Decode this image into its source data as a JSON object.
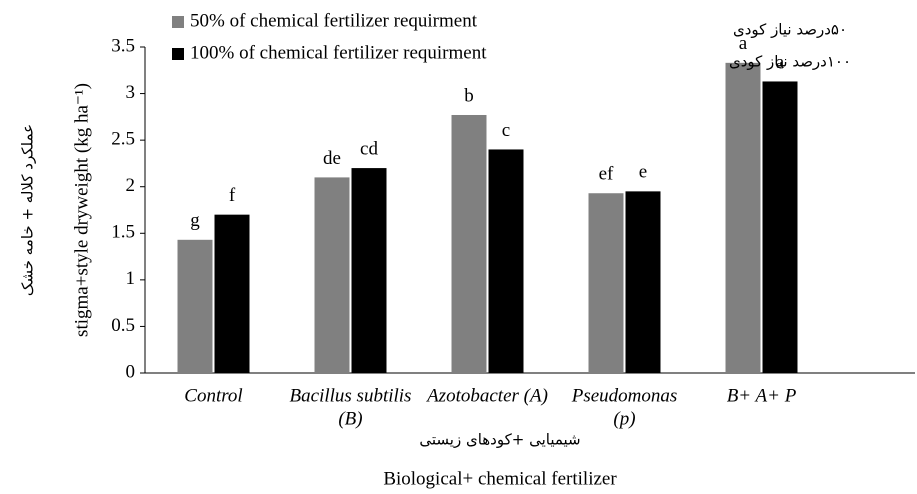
{
  "chart_data": {
    "type": "bar",
    "categories": [
      [
        "Control"
      ],
      [
        "Bacillus subtilis",
        "(B)"
      ],
      [
        "Azotobacter (A)"
      ],
      [
        "Pseudomonas",
        "(p)"
      ],
      [
        "B+ A+ P"
      ]
    ],
    "series": [
      {
        "name": "50% of chemical fertilizer requirment",
        "name_fa": "۵۰درصد نیاز کودی",
        "color": "#808080",
        "values": [
          1.43,
          2.1,
          2.77,
          1.93,
          3.33
        ],
        "letters": [
          "g",
          "de",
          "b",
          "ef",
          "a"
        ]
      },
      {
        "name": "100% of chemical fertilizer requirment",
        "name_fa": "۱۰۰درصد نیاز کودی",
        "color": "#000000",
        "values": [
          1.7,
          2.2,
          2.4,
          1.95,
          3.13
        ],
        "letters": [
          "f",
          "cd",
          "c",
          "e",
          "a"
        ]
      }
    ],
    "ylabel": "stigma+style dryweight (kg ha⁻¹)",
    "ylabel_fa": "عملکرد کلاله + خامه خشک",
    "xlabel": "Biological+ chemical fertilizer",
    "xlabel_fa": "شیمیایی +کودهای زیستی",
    "ylim": [
      0,
      3.5
    ],
    "yticks": [
      0,
      0.5,
      1,
      1.5,
      2,
      2.5,
      3,
      3.5
    ],
    "grid": false
  }
}
